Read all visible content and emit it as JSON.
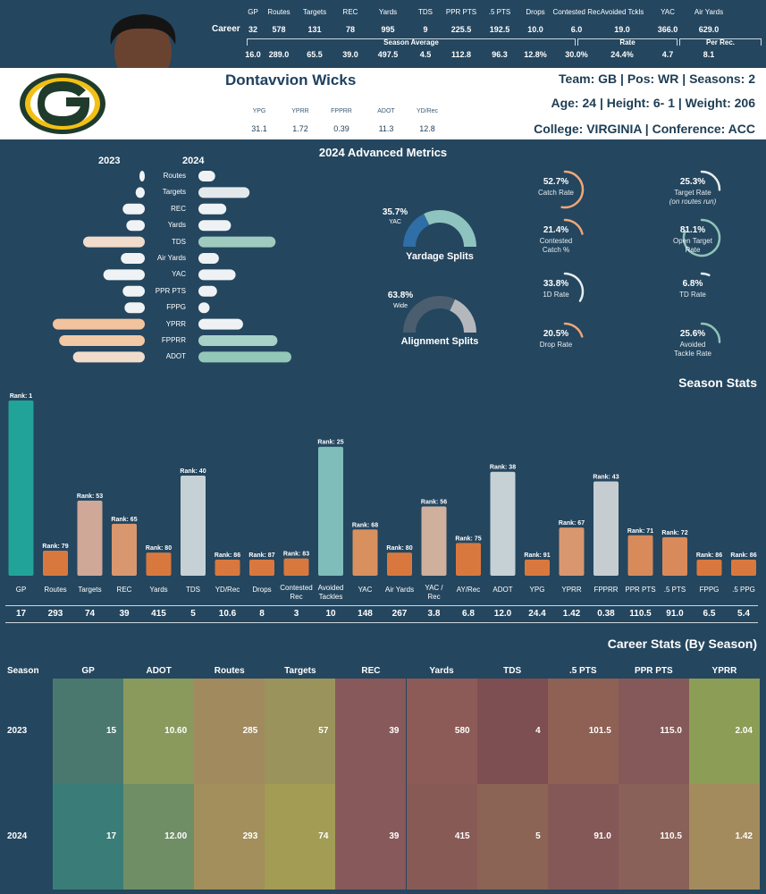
{
  "player": {
    "name": "Dontavvion Wicks",
    "team_line": "Team: GB  | Pos: WR | Seasons: 2",
    "bio_line": "Age: 24 | Height: 6- 1 | Weight: 206",
    "college_line": "College: VIRGINIA  | Conference: ACC"
  },
  "career_table": {
    "row_label": "Career",
    "headers": [
      "GP",
      "Routes",
      "Targets",
      "REC",
      "Yards",
      "TDS",
      "PPR PTS",
      ".5 PTS",
      "Drops",
      "Contested Rec",
      "Avoided Tckls",
      "YAC",
      "Air Yards"
    ],
    "career": [
      "32",
      "578",
      "131",
      "78",
      "995",
      "9",
      "225.5",
      "192.5",
      "10.0",
      "6.0",
      "19.0",
      "366.0",
      "629.0"
    ],
    "group_labels": {
      "season_avg": "Season Average",
      "rate": "Rate",
      "per_rec": "Per Rec."
    },
    "season_avg": [
      "16.0",
      "289.0",
      "65.5",
      "39.0",
      "497.5",
      "4.5",
      "112.8",
      "96.3",
      "12.8%",
      "30.0%",
      "24.4%",
      "4.7",
      "8.1"
    ]
  },
  "header_stats": {
    "labels": [
      "YPG",
      "YPRR",
      "FPPRR",
      "ADOT",
      "YD/Rec"
    ],
    "values": [
      "31.1",
      "1.72",
      "0.39",
      "11.3",
      "12.8"
    ]
  },
  "advanced": {
    "title": "2024 Advanced Metrics",
    "year_left": "2023",
    "year_right": "2024",
    "butterfly": [
      {
        "label": "Routes",
        "v2023": 0.04,
        "v2024": 0.18
      },
      {
        "label": "Targets",
        "v2023": 0.1,
        "v2024": 0.55
      },
      {
        "label": "REC",
        "v2023": 0.24,
        "v2024": 0.3
      },
      {
        "label": "Yards",
        "v2023": 0.2,
        "v2024": 0.35
      },
      {
        "label": "TDS",
        "v2023": 0.67,
        "v2024": 0.83
      },
      {
        "label": "Air Yards",
        "v2023": 0.26,
        "v2024": 0.22
      },
      {
        "label": "YAC",
        "v2023": 0.45,
        "v2024": 0.4
      },
      {
        "label": "PPR PTS",
        "v2023": 0.24,
        "v2024": 0.2
      },
      {
        "label": "FPPG",
        "v2023": 0.22,
        "v2024": 0.12
      },
      {
        "label": "YPRR",
        "v2023": 1.0,
        "v2024": 0.48
      },
      {
        "label": "FPPRR",
        "v2023": 0.93,
        "v2024": 0.85
      },
      {
        "label": "ADOT",
        "v2023": 0.78,
        "v2024": 1.0
      }
    ],
    "donuts": [
      {
        "pct": "35.7%",
        "sub": "YAC",
        "title": "Yardage Splits",
        "value": 0.357,
        "color_main": "#2f6ea6",
        "color_rest": "#8fc3bf"
      },
      {
        "pct": "63.8%",
        "sub": "Wide",
        "title": "Alignment Splits",
        "value": 0.638,
        "color_main": "#4a5e70",
        "color_rest": "#b4b8bc"
      }
    ],
    "rings_left": [
      {
        "pct": "52.7%",
        "label": "Catch Rate",
        "value": 0.527,
        "color": "#f0a676"
      },
      {
        "pct": "21.4%",
        "label": "Contested\nCatch %",
        "value": 0.214,
        "color": "#f0a676"
      },
      {
        "pct": "33.8%",
        "label": "1D Rate",
        "value": 0.338,
        "color": "#e8ecee"
      },
      {
        "pct": "20.5%",
        "label": "Drop Rate",
        "value": 0.205,
        "color": "#f0a676"
      }
    ],
    "rings_right": [
      {
        "pct": "25.3%",
        "label": "Target Rate",
        "note": "(on routes run)",
        "value": 0.253,
        "color": "#e8ecee"
      },
      {
        "pct": "81.1%",
        "label": "Open Target\nRate",
        "value": 0.811,
        "color": "#8fc3b8"
      },
      {
        "pct": "6.8%",
        "label": "TD Rate",
        "value": 0.068,
        "color": "#e8ecee"
      },
      {
        "pct": "25.6%",
        "label": "Avoided\nTackle Rate",
        "value": 0.256,
        "color": "#8fc3b8"
      }
    ]
  },
  "season_stats": {
    "title": "Season Stats",
    "bars": [
      {
        "label": "GP",
        "rank": "Rank: 1",
        "rank_num": 1,
        "value": "17",
        "color": "#22a39a"
      },
      {
        "label": "Routes",
        "rank": "Rank: 79",
        "rank_num": 79,
        "value": "293",
        "color": "#d9783e"
      },
      {
        "label": "Targets",
        "rank": "Rank: 53",
        "rank_num": 53,
        "value": "74",
        "color": "#cfa898"
      },
      {
        "label": "REC",
        "rank": "Rank: 65",
        "rank_num": 65,
        "value": "39",
        "color": "#d8976f"
      },
      {
        "label": "Yards",
        "rank": "Rank: 80",
        "rank_num": 80,
        "value": "415",
        "color": "#d9783e"
      },
      {
        "label": "TDS",
        "rank": "Rank: 40",
        "rank_num": 40,
        "value": "5",
        "color": "#c6d1d6"
      },
      {
        "label": "YD/Rec",
        "rank": "Rank: 86",
        "rank_num": 86,
        "value": "10.6",
        "color": "#d9783e"
      },
      {
        "label": "Drops",
        "rank": "Rank: 87",
        "rank_num": 87,
        "value": "8",
        "color": "#d9783e"
      },
      {
        "label": "Contested\nRec",
        "rank": "Rank: 83",
        "rank_num": 83,
        "value": "3",
        "color": "#d9783e"
      },
      {
        "label": "Avoided\nTackles",
        "rank": "Rank: 25",
        "rank_num": 25,
        "value": "10",
        "color": "#7fbdba"
      },
      {
        "label": "YAC",
        "rank": "Rank: 68",
        "rank_num": 68,
        "value": "148",
        "color": "#d9905f"
      },
      {
        "label": "Air Yards",
        "rank": "Rank: 80",
        "rank_num": 80,
        "value": "267",
        "color": "#d9783e"
      },
      {
        "label": "YAC /\nRec",
        "rank": "Rank: 56",
        "rank_num": 56,
        "value": "3.8",
        "color": "#cfb09c"
      },
      {
        "label": "AY/Rec",
        "rank": "Rank: 75",
        "rank_num": 75,
        "value": "6.8",
        "color": "#d9783e"
      },
      {
        "label": "ADOT",
        "rank": "Rank: 38",
        "rank_num": 38,
        "value": "12.0",
        "color": "#c6d1d6"
      },
      {
        "label": "YPG",
        "rank": "Rank: 91",
        "rank_num": 91,
        "value": "24.4",
        "color": "#d9783e"
      },
      {
        "label": "YPRR",
        "rank": "Rank: 67",
        "rank_num": 67,
        "value": "1.42",
        "color": "#d8976f"
      },
      {
        "label": "FPPRR",
        "rank": "Rank: 43",
        "rank_num": 43,
        "value": "0.38",
        "color": "#c6cdd1"
      },
      {
        "label": "PPR PTS",
        "rank": "Rank: 71",
        "rank_num": 71,
        "value": "110.5",
        "color": "#d98a5a"
      },
      {
        "label": ".5 PTS",
        "rank": "Rank: 72",
        "rank_num": 72,
        "value": "91.0",
        "color": "#d98a5a"
      },
      {
        "label": "FPPG",
        "rank": "Rank: 86",
        "rank_num": 86,
        "value": "6.5",
        "color": "#d9783e"
      },
      {
        "label": ".5 PPG",
        "rank": "Rank: 86",
        "rank_num": 86,
        "value": "5.4",
        "color": "#d9783e"
      }
    ]
  },
  "career_by_season": {
    "title": "Career Stats (By Season)",
    "season_header": "Season",
    "headers": [
      "GP",
      "ADOT",
      "Routes",
      "Targets",
      "REC",
      "Yards",
      "TDS",
      ".5 PTS",
      "PPR PTS",
      "YPRR"
    ],
    "rows": [
      {
        "season": "2023",
        "values": [
          "15",
          "10.60",
          "285",
          "57",
          "39",
          "580",
          "4",
          "101.5",
          "115.0",
          "2.04"
        ],
        "colors": [
          "#4a786f",
          "#899a5c",
          "#a08a5e",
          "#9a935c",
          "#87595a",
          "#8c5b58",
          "#7d4e52",
          "#8e6154",
          "#855959",
          "#8c9d56"
        ]
      },
      {
        "season": "2024",
        "values": [
          "17",
          "12.00",
          "293",
          "74",
          "39",
          "415",
          "5",
          "91.0",
          "110.5",
          "1.42"
        ],
        "colors": [
          "#3a7d78",
          "#6f8e66",
          "#a28f5b",
          "#a29c55",
          "#87595a",
          "#885a56",
          "#8c6455",
          "#855858",
          "#8a6158",
          "#a48b5d"
        ]
      }
    ]
  },
  "chart_data": [
    {
      "type": "bar",
      "title": "2024 Advanced Metrics",
      "series": [
        {
          "name": "2023",
          "values": [
            0.04,
            0.1,
            0.24,
            0.2,
            0.67,
            0.26,
            0.45,
            0.24,
            0.22,
            1.0,
            0.93,
            0.78
          ]
        },
        {
          "name": "2024",
          "values": [
            0.18,
            0.55,
            0.3,
            0.35,
            0.83,
            0.22,
            0.4,
            0.2,
            0.12,
            0.48,
            0.85,
            1.0
          ]
        }
      ],
      "categories": [
        "Routes",
        "Targets",
        "REC",
        "Yards",
        "TDS",
        "Air Yards",
        "YAC",
        "PPR PTS",
        "FPPG",
        "YPRR",
        "FPPRR",
        "ADOT"
      ]
    },
    {
      "type": "bar",
      "title": "Season Stats",
      "categories": [
        "GP",
        "Routes",
        "Targets",
        "REC",
        "Yards",
        "TDS",
        "YD/Rec",
        "Drops",
        "Contested Rec",
        "Avoided Tackles",
        "YAC",
        "Air Yards",
        "YAC / Rec",
        "AY/Rec",
        "ADOT",
        "YPG",
        "YPRR",
        "FPPRR",
        "PPR PTS",
        ".5 PTS",
        "FPPG",
        ".5 PPG"
      ],
      "values": [
        17,
        293,
        74,
        39,
        415,
        5,
        10.6,
        8,
        3,
        10,
        148,
        267,
        3.8,
        6.8,
        12.0,
        24.4,
        1.42,
        0.38,
        110.5,
        91.0,
        6.5,
        5.4
      ],
      "ranks": [
        1,
        79,
        53,
        65,
        80,
        40,
        86,
        87,
        83,
        25,
        68,
        80,
        56,
        75,
        38,
        91,
        67,
        43,
        71,
        72,
        86,
        86
      ]
    },
    {
      "type": "table",
      "title": "Career Stats (By Season)",
      "columns": [
        "Season",
        "GP",
        "ADOT",
        "Routes",
        "Targets",
        "REC",
        "Yards",
        "TDS",
        ".5 PTS",
        "PPR PTS",
        "YPRR"
      ],
      "rows": [
        [
          "2023",
          15,
          10.6,
          285,
          57,
          39,
          580,
          4,
          101.5,
          115.0,
          2.04
        ],
        [
          "2024",
          17,
          12.0,
          293,
          74,
          39,
          415,
          5,
          91.0,
          110.5,
          1.42
        ]
      ]
    }
  ]
}
